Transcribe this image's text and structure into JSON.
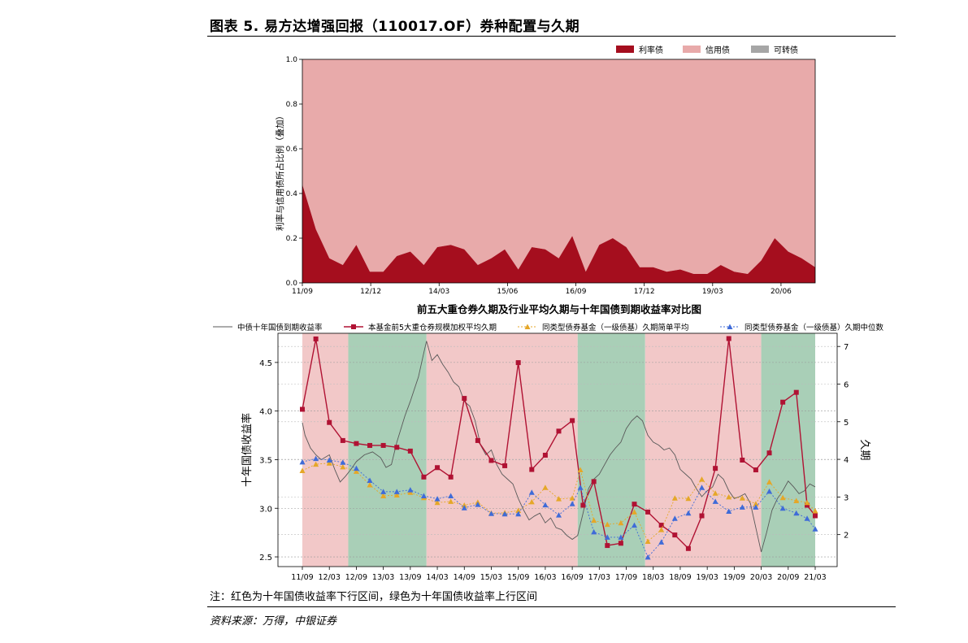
{
  "figure": {
    "title": "图表 5. 易方达增强回报（110017.OF）券种配置与久期",
    "note": "注：红色为十年国债收益率下行区间，绿色为十年国债收益率上行区间",
    "source": "资料来源：万得，中银证券"
  },
  "colors": {
    "rate_bond": "#a50e1e",
    "credit_bond": "#e8aaaa",
    "convertible": "#a6a6a6",
    "down_region": "#f2c8c8",
    "up_region": "#a9cfb7",
    "yield_line": "#595959",
    "top5_line": "#b01233",
    "mean_line": "#e5a728",
    "median_line": "#3f6bd8"
  },
  "chart_data": [
    {
      "type": "area",
      "title": "",
      "xlabel": "",
      "ylabel": "利率与信用债所占比例（叠加）",
      "ylim": [
        0.0,
        1.0
      ],
      "yticks": [
        "0.0",
        "0.2",
        "0.4",
        "0.6",
        "0.8",
        "1.0"
      ],
      "x_tick_labels": [
        "11/09",
        "12/12",
        "14/03",
        "15/06",
        "16/09",
        "17/12",
        "19/03",
        "20/06"
      ],
      "legend": [
        "利率债",
        "信用债",
        "可转债"
      ],
      "legend_position": "top-right",
      "stacked": true,
      "series": [
        {
          "name": "利率债",
          "values": [
            0.44,
            0.24,
            0.11,
            0.08,
            0.17,
            0.05,
            0.05,
            0.12,
            0.14,
            0.08,
            0.16,
            0.17,
            0.15,
            0.08,
            0.11,
            0.15,
            0.06,
            0.16,
            0.15,
            0.11,
            0.21,
            0.05,
            0.17,
            0.2,
            0.16,
            0.07,
            0.07,
            0.05,
            0.06,
            0.04,
            0.04,
            0.08,
            0.05,
            0.04,
            0.1,
            0.2,
            0.14,
            0.11,
            0.07
          ]
        },
        {
          "name": "信用债",
          "values": [
            0.56,
            0.76,
            0.89,
            0.92,
            0.83,
            0.95,
            0.95,
            0.88,
            0.86,
            0.92,
            0.84,
            0.83,
            0.85,
            0.92,
            0.89,
            0.85,
            0.94,
            0.84,
            0.85,
            0.89,
            0.79,
            0.95,
            0.83,
            0.8,
            0.84,
            0.93,
            0.93,
            0.95,
            0.94,
            0.96,
            0.96,
            0.92,
            0.95,
            0.96,
            0.9,
            0.8,
            0.86,
            0.89,
            0.93
          ]
        },
        {
          "name": "可转债",
          "values": [
            0,
            0,
            0,
            0,
            0,
            0,
            0,
            0,
            0,
            0,
            0,
            0,
            0,
            0,
            0,
            0,
            0,
            0,
            0,
            0,
            0,
            0,
            0,
            0,
            0,
            0,
            0,
            0,
            0,
            0,
            0,
            0,
            0,
            0,
            0,
            0,
            0,
            0,
            0
          ]
        }
      ]
    },
    {
      "type": "line",
      "title": "前五大重仓券久期及行业平均久期与十年国债到期收益率对比图",
      "xlabel": "",
      "ylabel_left": "十年国债收益率",
      "ylabel_right": "久期",
      "ylim_left": [
        2.4,
        4.8
      ],
      "ylim_right": [
        1.15,
        7.35
      ],
      "yticks_left": [
        "2.5",
        "3.0",
        "3.5",
        "4.0",
        "4.5"
      ],
      "yticks_right": [
        "2",
        "3",
        "4",
        "5",
        "6",
        "7"
      ],
      "x_tick_labels": [
        "11/09",
        "12/03",
        "12/09",
        "13/03",
        "13/09",
        "14/03",
        "14/09",
        "15/03",
        "15/09",
        "16/03",
        "16/09",
        "17/03",
        "17/09",
        "18/03",
        "18/09",
        "19/03",
        "19/09",
        "20/03",
        "20/09",
        "21/03"
      ],
      "grid": true,
      "legend_position": "top",
      "regions": [
        {
          "kind": "down",
          "from": 0.0,
          "to": 1.7
        },
        {
          "kind": "up",
          "from": 1.7,
          "to": 4.6
        },
        {
          "kind": "down",
          "from": 4.6,
          "to": 10.2
        },
        {
          "kind": "up",
          "from": 10.2,
          "to": 12.7
        },
        {
          "kind": "down",
          "from": 12.7,
          "to": 17.0
        },
        {
          "kind": "up",
          "from": 17.0,
          "to": 19.0
        }
      ],
      "series": [
        {
          "name": "中债十年国债到期收益率",
          "axis": "left",
          "points": [
            [
              0.0,
              3.88
            ],
            [
              0.1,
              3.75
            ],
            [
              0.3,
              3.62
            ],
            [
              0.5,
              3.55
            ],
            [
              0.7,
              3.5
            ],
            [
              1.0,
              3.55
            ],
            [
              1.2,
              3.4
            ],
            [
              1.4,
              3.27
            ],
            [
              1.6,
              3.33
            ],
            [
              1.8,
              3.4
            ],
            [
              2.0,
              3.48
            ],
            [
              2.3,
              3.55
            ],
            [
              2.6,
              3.58
            ],
            [
              2.9,
              3.52
            ],
            [
              3.1,
              3.42
            ],
            [
              3.3,
              3.45
            ],
            [
              3.5,
              3.68
            ],
            [
              3.8,
              3.95
            ],
            [
              4.0,
              4.1
            ],
            [
              4.3,
              4.35
            ],
            [
              4.5,
              4.6
            ],
            [
              4.6,
              4.72
            ],
            [
              4.8,
              4.52
            ],
            [
              5.0,
              4.58
            ],
            [
              5.2,
              4.48
            ],
            [
              5.4,
              4.4
            ],
            [
              5.6,
              4.3
            ],
            [
              5.8,
              4.25
            ],
            [
              6.0,
              4.1
            ],
            [
              6.2,
              4.05
            ],
            [
              6.4,
              3.9
            ],
            [
              6.6,
              3.65
            ],
            [
              6.8,
              3.55
            ],
            [
              7.0,
              3.6
            ],
            [
              7.2,
              3.45
            ],
            [
              7.4,
              3.35
            ],
            [
              7.6,
              3.3
            ],
            [
              7.8,
              3.25
            ],
            [
              8.0,
              3.1
            ],
            [
              8.2,
              2.98
            ],
            [
              8.4,
              2.88
            ],
            [
              8.6,
              2.92
            ],
            [
              8.8,
              2.95
            ],
            [
              9.0,
              2.85
            ],
            [
              9.2,
              2.9
            ],
            [
              9.4,
              2.8
            ],
            [
              9.6,
              2.78
            ],
            [
              9.8,
              2.72
            ],
            [
              10.0,
              2.68
            ],
            [
              10.2,
              2.72
            ],
            [
              10.4,
              2.95
            ],
            [
              10.6,
              3.2
            ],
            [
              10.8,
              3.3
            ],
            [
              11.0,
              3.35
            ],
            [
              11.2,
              3.45
            ],
            [
              11.4,
              3.55
            ],
            [
              11.6,
              3.62
            ],
            [
              11.8,
              3.68
            ],
            [
              12.0,
              3.82
            ],
            [
              12.2,
              3.9
            ],
            [
              12.4,
              3.95
            ],
            [
              12.6,
              3.9
            ],
            [
              12.8,
              3.75
            ],
            [
              13.0,
              3.68
            ],
            [
              13.2,
              3.65
            ],
            [
              13.4,
              3.6
            ],
            [
              13.6,
              3.62
            ],
            [
              13.8,
              3.55
            ],
            [
              14.0,
              3.4
            ],
            [
              14.2,
              3.35
            ],
            [
              14.4,
              3.3
            ],
            [
              14.6,
              3.2
            ],
            [
              14.8,
              3.12
            ],
            [
              15.0,
              3.18
            ],
            [
              15.2,
              3.22
            ],
            [
              15.4,
              3.35
            ],
            [
              15.6,
              3.3
            ],
            [
              15.8,
              3.18
            ],
            [
              16.0,
              3.1
            ],
            [
              16.2,
              3.12
            ],
            [
              16.4,
              3.15
            ],
            [
              16.6,
              3.05
            ],
            [
              16.8,
              2.8
            ],
            [
              17.0,
              2.55
            ],
            [
              17.2,
              2.75
            ],
            [
              17.4,
              2.98
            ],
            [
              17.6,
              3.1
            ],
            [
              17.8,
              3.18
            ],
            [
              18.0,
              3.28
            ],
            [
              18.2,
              3.22
            ],
            [
              18.4,
              3.15
            ],
            [
              18.6,
              3.18
            ],
            [
              18.8,
              3.25
            ],
            [
              19.0,
              3.22
            ]
          ]
        },
        {
          "name": "本基金前5大重仓券规模加权平均久期",
          "axis": "right",
          "points": [
            [
              0.0,
              5.33
            ],
            [
              0.5,
              7.2
            ],
            [
              1.0,
              4.98
            ],
            [
              1.5,
              4.5
            ],
            [
              2.0,
              4.42
            ],
            [
              2.5,
              4.37
            ],
            [
              3.0,
              4.37
            ],
            [
              3.5,
              4.32
            ],
            [
              4.0,
              4.22
            ],
            [
              4.5,
              3.53
            ],
            [
              5.0,
              3.78
            ],
            [
              5.5,
              3.53
            ],
            [
              6.0,
              5.62
            ],
            [
              6.5,
              4.5
            ],
            [
              7.0,
              3.97
            ],
            [
              7.5,
              3.83
            ],
            [
              8.0,
              6.57
            ],
            [
              8.5,
              3.73
            ],
            [
              9.0,
              4.11
            ],
            [
              9.5,
              4.75
            ],
            [
              10.0,
              5.03
            ],
            [
              10.4,
              2.78
            ],
            [
              10.8,
              3.41
            ],
            [
              11.3,
              1.71
            ],
            [
              11.8,
              1.77
            ],
            [
              12.3,
              2.81
            ],
            [
              12.8,
              2.6
            ],
            [
              13.3,
              2.25
            ],
            [
              13.8,
              1.99
            ],
            [
              14.3,
              1.63
            ],
            [
              14.8,
              2.5
            ],
            [
              15.3,
              3.76
            ],
            [
              15.8,
              7.21
            ],
            [
              16.3,
              3.98
            ],
            [
              16.8,
              3.72
            ],
            [
              17.3,
              4.17
            ],
            [
              17.8,
              5.52
            ],
            [
              18.3,
              5.78
            ],
            [
              18.7,
              2.78
            ],
            [
              19.0,
              2.5
            ]
          ]
        },
        {
          "name": "同类型债券基金（一级债基）久期简单平均",
          "axis": "right",
          "points": [
            [
              0.0,
              3.7
            ],
            [
              0.5,
              3.87
            ],
            [
              1.0,
              3.9
            ],
            [
              1.5,
              3.8
            ],
            [
              2.0,
              3.68
            ],
            [
              2.5,
              3.32
            ],
            [
              3.0,
              3.03
            ],
            [
              3.5,
              3.05
            ],
            [
              4.0,
              3.12
            ],
            [
              4.5,
              2.98
            ],
            [
              5.0,
              2.85
            ],
            [
              5.5,
              2.88
            ],
            [
              6.0,
              2.78
            ],
            [
              6.5,
              2.86
            ],
            [
              7.0,
              2.57
            ],
            [
              7.5,
              2.58
            ],
            [
              8.0,
              2.64
            ],
            [
              8.5,
              2.87
            ],
            [
              9.0,
              3.25
            ],
            [
              9.5,
              2.95
            ],
            [
              10.0,
              2.97
            ],
            [
              10.3,
              3.72
            ],
            [
              10.8,
              2.38
            ],
            [
              11.3,
              2.27
            ],
            [
              11.8,
              2.31
            ],
            [
              12.3,
              2.6
            ],
            [
              12.8,
              1.82
            ],
            [
              13.3,
              2.13
            ],
            [
              13.8,
              2.97
            ],
            [
              14.3,
              2.96
            ],
            [
              14.8,
              3.47
            ],
            [
              15.3,
              3.1
            ],
            [
              15.8,
              3.0
            ],
            [
              16.3,
              2.97
            ],
            [
              16.8,
              2.82
            ],
            [
              17.3,
              3.4
            ],
            [
              17.8,
              2.98
            ],
            [
              18.3,
              2.9
            ],
            [
              18.7,
              2.85
            ],
            [
              19.0,
              2.63
            ]
          ]
        },
        {
          "name": "同类型债券基金（一级债基）久期中位数",
          "axis": "right",
          "points": [
            [
              0.0,
              3.93
            ],
            [
              0.5,
              4.02
            ],
            [
              1.0,
              3.98
            ],
            [
              1.5,
              3.92
            ],
            [
              2.0,
              3.76
            ],
            [
              2.5,
              3.44
            ],
            [
              3.0,
              3.14
            ],
            [
              3.5,
              3.14
            ],
            [
              4.0,
              3.19
            ],
            [
              4.5,
              3.03
            ],
            [
              5.0,
              2.95
            ],
            [
              5.5,
              3.03
            ],
            [
              6.0,
              2.71
            ],
            [
              6.5,
              2.8
            ],
            [
              7.0,
              2.56
            ],
            [
              7.5,
              2.55
            ],
            [
              8.0,
              2.55
            ],
            [
              8.5,
              3.12
            ],
            [
              9.0,
              2.79
            ],
            [
              9.5,
              2.52
            ],
            [
              10.0,
              2.82
            ],
            [
              10.3,
              3.25
            ],
            [
              10.8,
              2.07
            ],
            [
              11.3,
              1.93
            ],
            [
              11.8,
              1.93
            ],
            [
              12.3,
              2.25
            ],
            [
              12.8,
              1.4
            ],
            [
              13.3,
              1.8
            ],
            [
              13.8,
              2.43
            ],
            [
              14.3,
              2.57
            ],
            [
              14.8,
              3.25
            ],
            [
              15.3,
              2.88
            ],
            [
              15.8,
              2.62
            ],
            [
              16.3,
              2.73
            ],
            [
              16.8,
              2.73
            ],
            [
              17.3,
              3.15
            ],
            [
              17.8,
              2.7
            ],
            [
              18.3,
              2.57
            ],
            [
              18.7,
              2.43
            ],
            [
              19.0,
              2.15
            ]
          ]
        }
      ]
    }
  ]
}
